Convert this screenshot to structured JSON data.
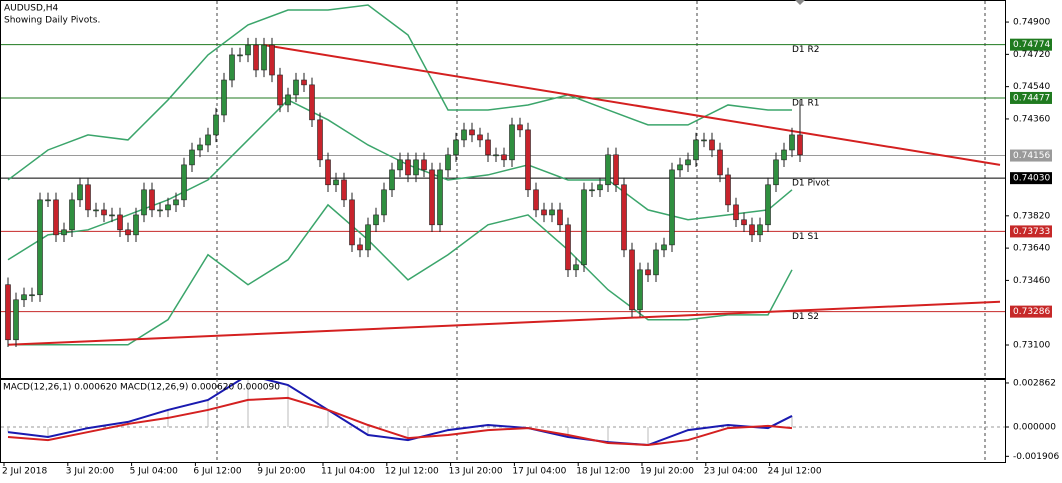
{
  "chart_data": [
    {
      "type": "candlestick",
      "title": "AUDUSD,H4",
      "subtitle": "Showing Daily Pivots.",
      "bull_color": "#2f8f3f",
      "bear_color": "#c8232c",
      "ylim": [
        0.72916,
        0.75023
      ],
      "yticks": [
        {
          "value": 0.749,
          "label": "0.74900"
        },
        {
          "value": 0.7472,
          "label": "0.74720"
        },
        {
          "value": 0.7454,
          "label": "0.74540"
        },
        {
          "value": 0.7436,
          "label": "0.74360"
        },
        {
          "value": 0.7382,
          "label": "0.73820"
        },
        {
          "value": 0.7364,
          "label": "0.73640"
        },
        {
          "value": 0.7346,
          "label": "0.73460"
        },
        {
          "value": 0.731,
          "label": "0.73100"
        }
      ],
      "time_labels": [
        "2 Jul 2018",
        "3 Jul 20:00",
        "5 Jul 04:00",
        "6 Jul 12:00",
        "9 Jul 20:00",
        "11 Jul 04:00",
        "12 Jul 12:00",
        "13 Jul 20:00",
        "17 Jul 04:00",
        "18 Jul 12:00",
        "19 Jul 20:00",
        "23 Jul 04:00",
        "24 Jul 12:00"
      ],
      "open": [
        0.73436,
        0.73129,
        0.73352,
        0.7338,
        0.7338,
        0.73909,
        0.73909,
        0.73714,
        0.73742,
        0.73909,
        0.73993,
        0.73853,
        0.73853,
        0.73825,
        0.73825,
        0.73742,
        0.73714,
        0.73825,
        0.73965,
        0.73853,
        0.73853,
        0.73881,
        0.73909,
        0.74104,
        0.74187,
        0.74215,
        0.74271,
        0.74382,
        0.74577,
        0.74717,
        0.74717,
        0.74772,
        0.74633,
        0.74772,
        0.74605,
        0.74438,
        0.74494,
        0.74577,
        0.7455,
        0.74355,
        0.74132,
        0.73993,
        0.7402,
        0.73909,
        0.73658,
        0.7363,
        0.7377,
        0.73825,
        0.73965,
        0.74076,
        0.74132,
        0.74048,
        0.74132,
        0.74076,
        0.7377,
        0.74076,
        0.7416,
        0.74243,
        0.74299,
        0.74271,
        0.74243,
        0.7416,
        0.7416,
        0.74132,
        0.74327,
        0.74299,
        0.73965,
        0.73853,
        0.73825,
        0.73853,
        0.7377,
        0.73519,
        0.73547,
        0.73965,
        0.73965,
        0.73993,
        0.7416,
        0.73993,
        0.7363,
        0.73296,
        0.73519,
        0.73491,
        0.7363,
        0.73658,
        0.74076,
        0.74104,
        0.74132,
        0.74243,
        0.74243,
        0.74187,
        0.74048,
        0.73881,
        0.73798,
        0.7377,
        0.73714,
        0.7377,
        0.73993,
        0.74132,
        0.74187,
        0.74271
      ],
      "high": [
        0.73476,
        0.73392,
        0.7342,
        0.7342,
        0.73949,
        0.73949,
        0.73949,
        0.73782,
        0.73949,
        0.74033,
        0.74033,
        0.73893,
        0.73893,
        0.73865,
        0.73865,
        0.73782,
        0.73865,
        0.74005,
        0.74005,
        0.73893,
        0.73921,
        0.73949,
        0.74144,
        0.74227,
        0.74255,
        0.74311,
        0.74422,
        0.74617,
        0.74757,
        0.74757,
        0.74812,
        0.74812,
        0.74812,
        0.74812,
        0.74645,
        0.74534,
        0.74617,
        0.74617,
        0.7459,
        0.74395,
        0.74172,
        0.7406,
        0.7406,
        0.73949,
        0.73698,
        0.7381,
        0.73865,
        0.74005,
        0.74116,
        0.74172,
        0.74172,
        0.74172,
        0.74172,
        0.74116,
        0.74116,
        0.742,
        0.74283,
        0.74339,
        0.74339,
        0.74311,
        0.74283,
        0.742,
        0.742,
        0.74367,
        0.74367,
        0.74339,
        0.74005,
        0.73893,
        0.73893,
        0.73893,
        0.7381,
        0.73587,
        0.74005,
        0.74005,
        0.74033,
        0.742,
        0.742,
        0.74033,
        0.7367,
        0.73559,
        0.73559,
        0.7367,
        0.73698,
        0.74116,
        0.74144,
        0.74172,
        0.74283,
        0.74283,
        0.74283,
        0.74227,
        0.74088,
        0.73921,
        0.73838,
        0.7381,
        0.7381,
        0.74033,
        0.74172,
        0.74227,
        0.74311,
        0.74466
      ],
      "low": [
        0.73089,
        0.73089,
        0.73312,
        0.7334,
        0.7334,
        0.73869,
        0.73674,
        0.73674,
        0.73702,
        0.73869,
        0.73813,
        0.73813,
        0.73785,
        0.73785,
        0.73702,
        0.73674,
        0.73674,
        0.73785,
        0.73813,
        0.73813,
        0.73813,
        0.73841,
        0.73869,
        0.74064,
        0.74147,
        0.74175,
        0.74231,
        0.74342,
        0.74537,
        0.74677,
        0.74677,
        0.74593,
        0.74593,
        0.74565,
        0.74398,
        0.74398,
        0.74454,
        0.7451,
        0.74315,
        0.74092,
        0.73953,
        0.73953,
        0.73869,
        0.73618,
        0.7359,
        0.7359,
        0.7373,
        0.73785,
        0.73925,
        0.74036,
        0.74008,
        0.74008,
        0.74036,
        0.7373,
        0.7373,
        0.74036,
        0.7412,
        0.74203,
        0.74231,
        0.74203,
        0.7412,
        0.7412,
        0.74092,
        0.74092,
        0.74259,
        0.73925,
        0.73813,
        0.73785,
        0.73785,
        0.7373,
        0.73479,
        0.73479,
        0.73507,
        0.73925,
        0.73925,
        0.73953,
        0.73953,
        0.7359,
        0.73256,
        0.73256,
        0.73451,
        0.73451,
        0.7359,
        0.73618,
        0.74036,
        0.74064,
        0.74092,
        0.74203,
        0.74147,
        0.74008,
        0.73841,
        0.73758,
        0.7373,
        0.73674,
        0.73674,
        0.7373,
        0.73953,
        0.74092,
        0.74147,
        0.7412
      ],
      "close": [
        0.73129,
        0.73352,
        0.7338,
        0.7338,
        0.73909,
        0.73909,
        0.73714,
        0.73742,
        0.73909,
        0.73993,
        0.73853,
        0.73853,
        0.73825,
        0.73825,
        0.73742,
        0.73714,
        0.73825,
        0.73965,
        0.73853,
        0.73853,
        0.73881,
        0.73909,
        0.74104,
        0.74187,
        0.74215,
        0.74271,
        0.74382,
        0.74577,
        0.74717,
        0.74717,
        0.74772,
        0.74633,
        0.74772,
        0.74605,
        0.74438,
        0.74494,
        0.74577,
        0.7455,
        0.74355,
        0.74132,
        0.73993,
        0.7402,
        0.73909,
        0.73658,
        0.7363,
        0.7377,
        0.73825,
        0.73965,
        0.74076,
        0.74132,
        0.74048,
        0.74132,
        0.74076,
        0.7377,
        0.74076,
        0.7416,
        0.74243,
        0.74299,
        0.74271,
        0.74243,
        0.7416,
        0.7416,
        0.74132,
        0.74327,
        0.74299,
        0.73965,
        0.73853,
        0.73825,
        0.73853,
        0.7377,
        0.73519,
        0.73547,
        0.73965,
        0.73965,
        0.73993,
        0.7416,
        0.73993,
        0.7363,
        0.73296,
        0.73519,
        0.73491,
        0.7363,
        0.73658,
        0.74076,
        0.74104,
        0.74132,
        0.74243,
        0.74243,
        0.74187,
        0.74048,
        0.73881,
        0.73798,
        0.7377,
        0.73714,
        0.7377,
        0.73993,
        0.74132,
        0.74187,
        0.74271,
        0.7416
      ],
      "bands": {
        "color": "#3ba56b",
        "x": [
          0,
          5,
          10,
          15,
          20,
          25,
          30,
          35,
          40,
          45,
          50,
          55,
          60,
          65,
          70,
          75,
          80,
          85,
          90,
          95,
          98
        ],
        "upper": [
          0.7402,
          0.74187,
          0.74271,
          0.74243,
          0.74466,
          0.74717,
          0.74884,
          0.74967,
          0.74967,
          0.74995,
          0.74828,
          0.7441,
          0.7441,
          0.74438,
          0.74494,
          0.7441,
          0.74327,
          0.74327,
          0.74438,
          0.7441,
          0.7441
        ],
        "middle": [
          0.73575,
          0.73714,
          0.73742,
          0.73825,
          0.73909,
          0.7402,
          0.74243,
          0.74466,
          0.74355,
          0.74215,
          0.74104,
          0.7402,
          0.74048,
          0.74104,
          0.7402,
          0.7402,
          0.73853,
          0.73798,
          0.73825,
          0.73853,
          0.73965
        ],
        "lower": [
          0.73101,
          0.73101,
          0.73101,
          0.73101,
          0.73241,
          0.73603,
          0.73436,
          0.73575,
          0.73881,
          0.73686,
          0.73463,
          0.73603,
          0.7377,
          0.73825,
          0.7363,
          0.73408,
          0.73241,
          0.73241,
          0.73268,
          0.73268,
          0.73519
        ]
      },
      "trendlines": [
        {
          "x": [
            32,
            124
          ],
          "y": [
            0.74772,
            0.74104
          ],
          "color": "#d42020"
        },
        {
          "x": [
            0,
            124
          ],
          "y": [
            0.73101,
            0.73341
          ],
          "color": "#d42020"
        }
      ],
      "levels": [
        {
          "name": "D1 R2",
          "value": 0.74774,
          "label": "0.74774",
          "color": "#1f7a1f"
        },
        {
          "name": "D1 R1",
          "value": 0.74477,
          "label": "0.74477",
          "color": "#1f7a1f"
        },
        {
          "value": 0.74156,
          "label": "0.74156",
          "color": "#9a9a9a"
        },
        {
          "name": "D1 Pivot",
          "value": 0.7403,
          "label": "0.74030",
          "color": "#000000"
        },
        {
          "name": "D1 S1",
          "value": 0.73733,
          "label": "0.73733",
          "color": "#c62828"
        },
        {
          "name": "D1 S2",
          "value": 0.73286,
          "label": "0.73286",
          "color": "#c62828"
        }
      ]
    },
    {
      "type": "line",
      "title": "MACD(12,26,1) 0.000620 MACD(12,26,9) 0.000620 0.000090",
      "ylim": [
        -0.002275,
        0.003055
      ],
      "yticks": [
        {
          "value": 0.002862,
          "label": "0.002862"
        },
        {
          "value": 0,
          "label": "0.000000"
        },
        {
          "value": -0.001906,
          "label": "-0.001906"
        }
      ],
      "x": [
        0,
        5,
        10,
        15,
        20,
        25,
        30,
        35,
        40,
        45,
        50,
        55,
        60,
        65,
        70,
        75,
        80,
        85,
        90,
        95,
        98
      ],
      "series": [
        {
          "color": "#1a1ab0",
          "values": [
            -0.00033,
            -0.00065,
            -7e-05,
            0.00033,
            0.00111,
            0.00176,
            0.00338,
            0.00273,
            0.00111,
            -0.00052,
            -0.00085,
            -0.0002,
            0.00013,
            -7e-05,
            -0.00065,
            -0.00098,
            -0.00117,
            -0.0002,
            0.00013,
            -7e-05,
            0.00072
          ]
        },
        {
          "color": "#d42020",
          "values": [
            -0.00065,
            -0.00085,
            -0.00033,
            0.0002,
            0.00059,
            0.00111,
            0.00176,
            0.00189,
            0.00111,
            0.00013,
            -0.00072,
            -0.00052,
            -0.0002,
            -7e-05,
            -0.00052,
            -0.00104,
            -0.00117,
            -0.00085,
            -7e-05,
            7e-05,
            -7e-05
          ]
        }
      ]
    }
  ]
}
